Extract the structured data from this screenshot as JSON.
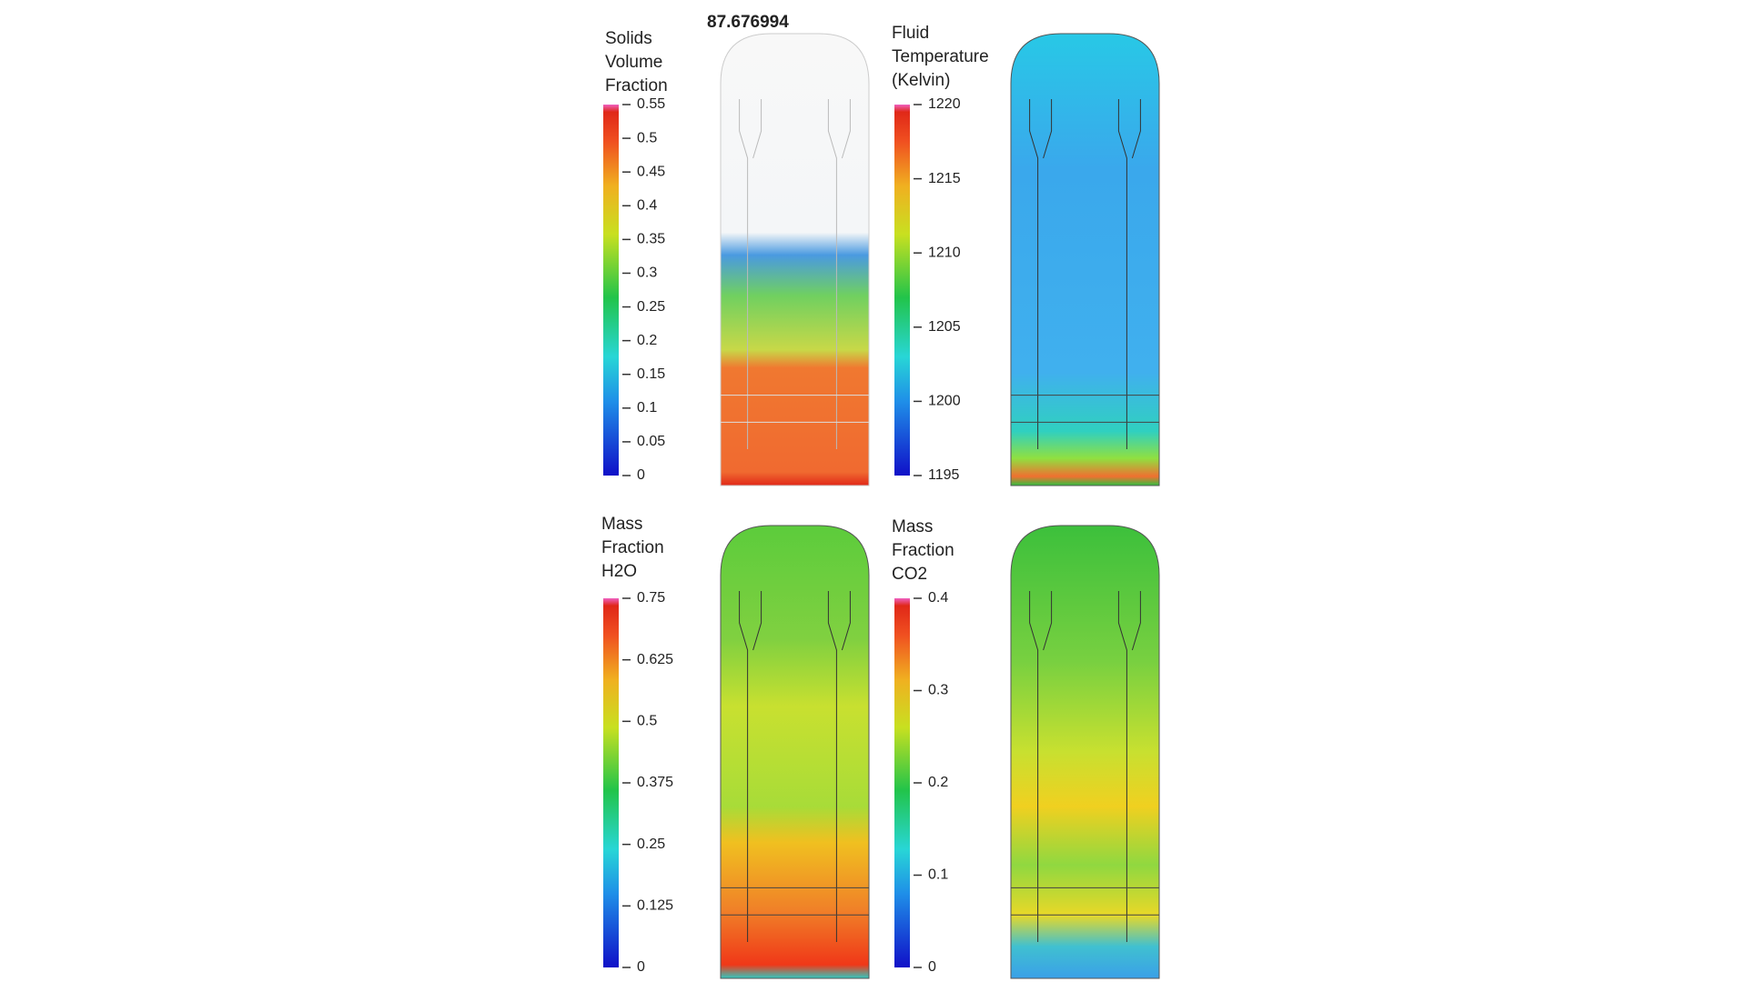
{
  "time": "87.676994",
  "panels": [
    {
      "title": [
        "Solids",
        "Volume",
        "Fraction"
      ],
      "lim": [
        0,
        0.55
      ],
      "ticks": [
        0,
        0.05,
        0.1,
        0.15,
        0.2,
        0.25,
        0.3,
        0.35,
        0.4,
        0.45,
        0.5,
        0.55
      ]
    },
    {
      "title": [
        "Fluid",
        "Temperature",
        "(Kelvin)"
      ],
      "lim": [
        1195,
        1220
      ],
      "ticks": [
        1195,
        1200,
        1205,
        1210,
        1215,
        1220
      ]
    },
    {
      "title": [
        "Mass",
        "Fraction",
        "H2O"
      ],
      "lim": [
        0,
        0.75
      ],
      "ticks": [
        0,
        0.125,
        0.25,
        0.375,
        0.5,
        0.625,
        0.75
      ]
    },
    {
      "title": [
        "Mass",
        "Fraction",
        "CO2"
      ],
      "lim": [
        0,
        0.4
      ],
      "ticks": [
        0,
        0.1,
        0.2,
        0.3,
        0.4
      ]
    }
  ]
}
